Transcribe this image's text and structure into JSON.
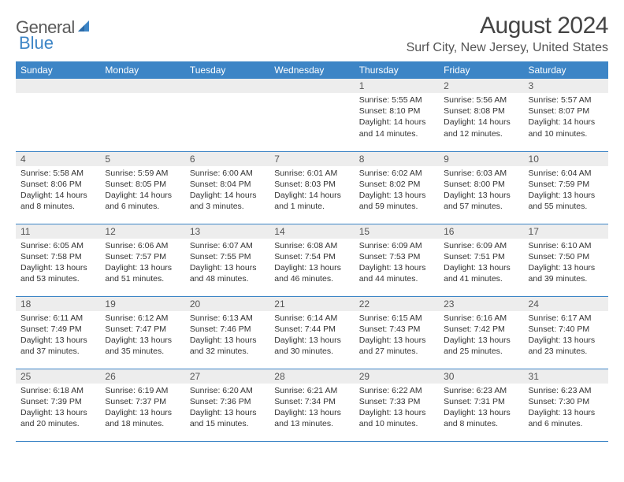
{
  "header": {
    "logo_general": "General",
    "logo_blue": "Blue",
    "month": "August 2024",
    "location": "Surf City, New Jersey, United States"
  },
  "colors": {
    "header_bg": "#3d85c6",
    "header_text": "#ffffff",
    "daynum_bg": "#ededed",
    "row_border": "#3d85c6",
    "page_bg": "#ffffff",
    "text": "#333333",
    "logo_gray": "#5a5a5a",
    "logo_blue": "#3d85c6"
  },
  "fonts": {
    "title_size_pt": 30,
    "location_size_pt": 16,
    "header_size_pt": 12,
    "daynum_size_pt": 12,
    "body_size_pt": 10.5
  },
  "weekdays": [
    "Sunday",
    "Monday",
    "Tuesday",
    "Wednesday",
    "Thursday",
    "Friday",
    "Saturday"
  ],
  "weeks": [
    [
      {
        "day": "",
        "lines": []
      },
      {
        "day": "",
        "lines": []
      },
      {
        "day": "",
        "lines": []
      },
      {
        "day": "",
        "lines": []
      },
      {
        "day": "1",
        "lines": [
          "Sunrise: 5:55 AM",
          "Sunset: 8:10 PM",
          "Daylight: 14 hours",
          "and 14 minutes."
        ]
      },
      {
        "day": "2",
        "lines": [
          "Sunrise: 5:56 AM",
          "Sunset: 8:08 PM",
          "Daylight: 14 hours",
          "and 12 minutes."
        ]
      },
      {
        "day": "3",
        "lines": [
          "Sunrise: 5:57 AM",
          "Sunset: 8:07 PM",
          "Daylight: 14 hours",
          "and 10 minutes."
        ]
      }
    ],
    [
      {
        "day": "4",
        "lines": [
          "Sunrise: 5:58 AM",
          "Sunset: 8:06 PM",
          "Daylight: 14 hours",
          "and 8 minutes."
        ]
      },
      {
        "day": "5",
        "lines": [
          "Sunrise: 5:59 AM",
          "Sunset: 8:05 PM",
          "Daylight: 14 hours",
          "and 6 minutes."
        ]
      },
      {
        "day": "6",
        "lines": [
          "Sunrise: 6:00 AM",
          "Sunset: 8:04 PM",
          "Daylight: 14 hours",
          "and 3 minutes."
        ]
      },
      {
        "day": "7",
        "lines": [
          "Sunrise: 6:01 AM",
          "Sunset: 8:03 PM",
          "Daylight: 14 hours",
          "and 1 minute."
        ]
      },
      {
        "day": "8",
        "lines": [
          "Sunrise: 6:02 AM",
          "Sunset: 8:02 PM",
          "Daylight: 13 hours",
          "and 59 minutes."
        ]
      },
      {
        "day": "9",
        "lines": [
          "Sunrise: 6:03 AM",
          "Sunset: 8:00 PM",
          "Daylight: 13 hours",
          "and 57 minutes."
        ]
      },
      {
        "day": "10",
        "lines": [
          "Sunrise: 6:04 AM",
          "Sunset: 7:59 PM",
          "Daylight: 13 hours",
          "and 55 minutes."
        ]
      }
    ],
    [
      {
        "day": "11",
        "lines": [
          "Sunrise: 6:05 AM",
          "Sunset: 7:58 PM",
          "Daylight: 13 hours",
          "and 53 minutes."
        ]
      },
      {
        "day": "12",
        "lines": [
          "Sunrise: 6:06 AM",
          "Sunset: 7:57 PM",
          "Daylight: 13 hours",
          "and 51 minutes."
        ]
      },
      {
        "day": "13",
        "lines": [
          "Sunrise: 6:07 AM",
          "Sunset: 7:55 PM",
          "Daylight: 13 hours",
          "and 48 minutes."
        ]
      },
      {
        "day": "14",
        "lines": [
          "Sunrise: 6:08 AM",
          "Sunset: 7:54 PM",
          "Daylight: 13 hours",
          "and 46 minutes."
        ]
      },
      {
        "day": "15",
        "lines": [
          "Sunrise: 6:09 AM",
          "Sunset: 7:53 PM",
          "Daylight: 13 hours",
          "and 44 minutes."
        ]
      },
      {
        "day": "16",
        "lines": [
          "Sunrise: 6:09 AM",
          "Sunset: 7:51 PM",
          "Daylight: 13 hours",
          "and 41 minutes."
        ]
      },
      {
        "day": "17",
        "lines": [
          "Sunrise: 6:10 AM",
          "Sunset: 7:50 PM",
          "Daylight: 13 hours",
          "and 39 minutes."
        ]
      }
    ],
    [
      {
        "day": "18",
        "lines": [
          "Sunrise: 6:11 AM",
          "Sunset: 7:49 PM",
          "Daylight: 13 hours",
          "and 37 minutes."
        ]
      },
      {
        "day": "19",
        "lines": [
          "Sunrise: 6:12 AM",
          "Sunset: 7:47 PM",
          "Daylight: 13 hours",
          "and 35 minutes."
        ]
      },
      {
        "day": "20",
        "lines": [
          "Sunrise: 6:13 AM",
          "Sunset: 7:46 PM",
          "Daylight: 13 hours",
          "and 32 minutes."
        ]
      },
      {
        "day": "21",
        "lines": [
          "Sunrise: 6:14 AM",
          "Sunset: 7:44 PM",
          "Daylight: 13 hours",
          "and 30 minutes."
        ]
      },
      {
        "day": "22",
        "lines": [
          "Sunrise: 6:15 AM",
          "Sunset: 7:43 PM",
          "Daylight: 13 hours",
          "and 27 minutes."
        ]
      },
      {
        "day": "23",
        "lines": [
          "Sunrise: 6:16 AM",
          "Sunset: 7:42 PM",
          "Daylight: 13 hours",
          "and 25 minutes."
        ]
      },
      {
        "day": "24",
        "lines": [
          "Sunrise: 6:17 AM",
          "Sunset: 7:40 PM",
          "Daylight: 13 hours",
          "and 23 minutes."
        ]
      }
    ],
    [
      {
        "day": "25",
        "lines": [
          "Sunrise: 6:18 AM",
          "Sunset: 7:39 PM",
          "Daylight: 13 hours",
          "and 20 minutes."
        ]
      },
      {
        "day": "26",
        "lines": [
          "Sunrise: 6:19 AM",
          "Sunset: 7:37 PM",
          "Daylight: 13 hours",
          "and 18 minutes."
        ]
      },
      {
        "day": "27",
        "lines": [
          "Sunrise: 6:20 AM",
          "Sunset: 7:36 PM",
          "Daylight: 13 hours",
          "and 15 minutes."
        ]
      },
      {
        "day": "28",
        "lines": [
          "Sunrise: 6:21 AM",
          "Sunset: 7:34 PM",
          "Daylight: 13 hours",
          "and 13 minutes."
        ]
      },
      {
        "day": "29",
        "lines": [
          "Sunrise: 6:22 AM",
          "Sunset: 7:33 PM",
          "Daylight: 13 hours",
          "and 10 minutes."
        ]
      },
      {
        "day": "30",
        "lines": [
          "Sunrise: 6:23 AM",
          "Sunset: 7:31 PM",
          "Daylight: 13 hours",
          "and 8 minutes."
        ]
      },
      {
        "day": "31",
        "lines": [
          "Sunrise: 6:23 AM",
          "Sunset: 7:30 PM",
          "Daylight: 13 hours",
          "and 6 minutes."
        ]
      }
    ]
  ]
}
